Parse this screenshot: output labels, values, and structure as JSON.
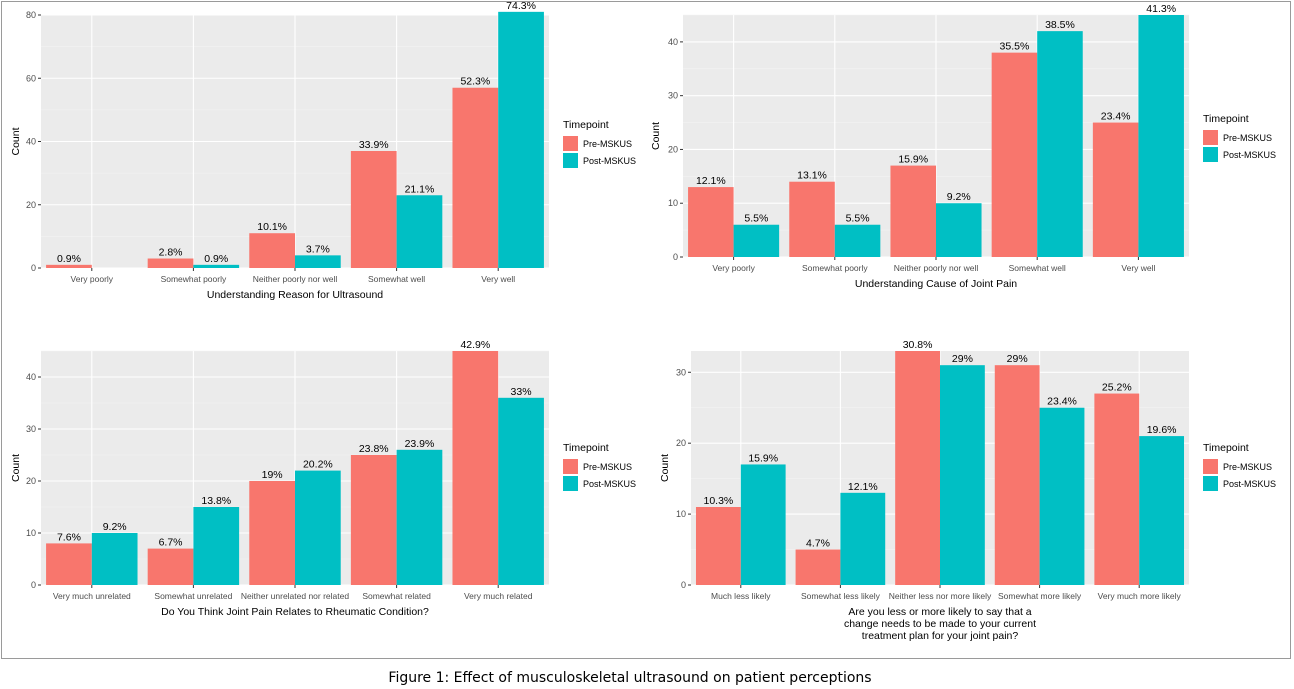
{
  "caption": "Figure 1: Effect of musculoskeletal ultrasound on patient perceptions",
  "colors": {
    "pre": "#F8766D",
    "post": "#00BFC4",
    "panel": "#EBEBEB",
    "grid_major": "#FFFFFF",
    "grid_minor": "#F4F4F4"
  },
  "chart_data": [
    {
      "type": "bar",
      "xlabel": "Understanding Reason for Ultrasound",
      "ylabel": "Count",
      "ylim": [
        0,
        80
      ],
      "yticks": [
        0,
        20,
        40,
        60,
        80
      ],
      "legend_title": "Timepoint",
      "legend_position": "right",
      "categories": [
        "Very poorly",
        "Somewhat poorly",
        "Neither poorly nor well",
        "Somewhat well",
        "Very well"
      ],
      "series": [
        {
          "name": "Pre-MSKUS",
          "values": [
            1,
            3,
            11,
            37,
            57
          ],
          "labels": [
            "0.9%",
            "2.8%",
            "10.1%",
            "33.9%",
            "52.3%"
          ]
        },
        {
          "name": "Post-MSKUS",
          "values": [
            null,
            1,
            4,
            23,
            81
          ],
          "labels": [
            null,
            "0.9%",
            "3.7%",
            "21.1%",
            "74.3%"
          ]
        }
      ]
    },
    {
      "type": "bar",
      "xlabel": "Understanding Cause of Joint Pain",
      "ylabel": "Count",
      "ylim": [
        0,
        45
      ],
      "yticks": [
        0,
        10,
        20,
        30,
        40
      ],
      "legend_title": "Timepoint",
      "legend_position": "right",
      "categories": [
        "Very poorly",
        "Somewhat poorly",
        "Neither poorly nor well",
        "Somewhat well",
        "Very well"
      ],
      "series": [
        {
          "name": "Pre-MSKUS",
          "values": [
            13,
            14,
            17,
            38,
            25
          ],
          "labels": [
            "12.1%",
            "13.1%",
            "15.9%",
            "35.5%",
            "23.4%"
          ]
        },
        {
          "name": "Post-MSKUS",
          "values": [
            6,
            6,
            10,
            42,
            45
          ],
          "labels": [
            "5.5%",
            "5.5%",
            "9.2%",
            "38.5%",
            "41.3%"
          ]
        }
      ]
    },
    {
      "type": "bar",
      "xlabel": "Do You Think Joint Pain Relates to Rheumatic Condition?",
      "ylabel": "Count",
      "ylim": [
        0,
        45
      ],
      "yticks": [
        0,
        10,
        20,
        30,
        40
      ],
      "legend_title": "Timepoint",
      "legend_position": "right",
      "categories": [
        "Very much unrelated",
        "Somewhat unrelated",
        "Neither unrelated nor related",
        "Somewhat related",
        "Very much related"
      ],
      "series": [
        {
          "name": "Pre-MSKUS",
          "values": [
            8,
            7,
            20,
            25,
            45
          ],
          "labels": [
            "7.6%",
            "6.7%",
            "19%",
            "23.8%",
            "42.9%"
          ]
        },
        {
          "name": "Post-MSKUS",
          "values": [
            10,
            15,
            22,
            26,
            36
          ],
          "labels": [
            "9.2%",
            "13.8%",
            "20.2%",
            "23.9%",
            "33%"
          ]
        }
      ]
    },
    {
      "type": "bar",
      "xlabel": "Are you less or more likely to say that a\nchange needs to be made to your current\ntreatment plan for your joint pain?",
      "ylabel": "Count",
      "ylim": [
        0,
        33
      ],
      "yticks": [
        0,
        10,
        20,
        30
      ],
      "legend_title": "Timepoint",
      "legend_position": "right",
      "categories": [
        "Much less likely",
        "Somewhat less likely",
        "Neither less nor more likely",
        "Somewhat more likely",
        "Very much more likely"
      ],
      "series": [
        {
          "name": "Pre-MSKUS",
          "values": [
            11,
            5,
            33,
            31,
            27
          ],
          "labels": [
            "10.3%",
            "4.7%",
            "30.8%",
            "29%",
            "25.2%"
          ]
        },
        {
          "name": "Post-MSKUS",
          "values": [
            17,
            13,
            31,
            25,
            21
          ],
          "labels": [
            "15.9%",
            "12.1%",
            "29%",
            "23.4%",
            "19.6%"
          ]
        }
      ]
    }
  ]
}
